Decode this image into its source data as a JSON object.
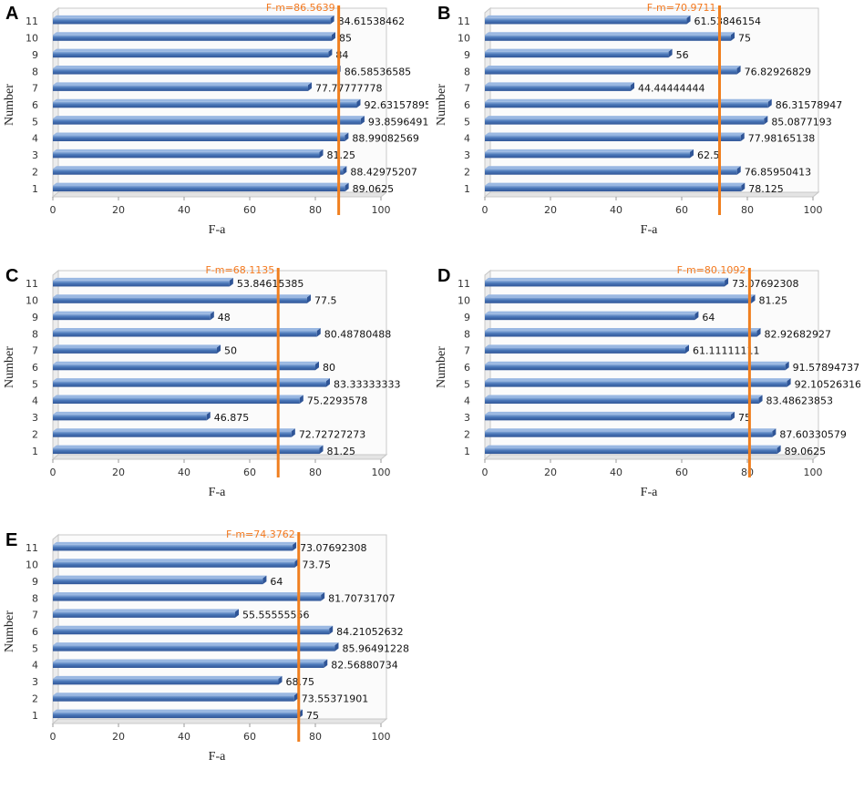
{
  "colors": {
    "bar": "#4a77b8",
    "bar_dark": "#2f5597",
    "fm_line": "#f07f1f",
    "frame": "#c8c8c8"
  },
  "chart_data": [
    {
      "panel": "A",
      "type": "bar",
      "orientation": "horizontal",
      "categories": [
        "1",
        "2",
        "3",
        "4",
        "5",
        "6",
        "7",
        "8",
        "9",
        "10",
        "11"
      ],
      "values": [
        89.0625,
        88.42975207,
        81.25,
        88.99082569,
        93.85964912,
        92.63157895,
        77.77777778,
        86.58536585,
        84,
        85,
        84.61538462
      ],
      "value_labels": [
        "89.0625",
        "88.42975207",
        "81.25",
        "88.99082569",
        "93.85964912",
        "92.63157895",
        "77.77777778",
        "86.58536585",
        "84",
        "85",
        "84.61538462"
      ],
      "fm_value": 86.5639,
      "fm_label": "F-m=86.5639",
      "xlabel": "F-a",
      "ylabel": "Number",
      "xlim": [
        0,
        100
      ],
      "xticks": [
        "0",
        "20",
        "40",
        "60",
        "80",
        "100"
      ]
    },
    {
      "panel": "B",
      "type": "bar",
      "orientation": "horizontal",
      "categories": [
        "1",
        "2",
        "3",
        "4",
        "5",
        "6",
        "7",
        "8",
        "9",
        "10",
        "11"
      ],
      "values": [
        78.125,
        76.85950413,
        62.5,
        77.98165138,
        85.0877193,
        86.31578947,
        44.44444444,
        76.82926829,
        56,
        75,
        61.53846154
      ],
      "value_labels": [
        "78.125",
        "76.85950413",
        "62.5",
        "77.98165138",
        "85.0877193",
        "86.31578947",
        "44.44444444",
        "76.82926829",
        "56",
        "75",
        "61.53846154"
      ],
      "fm_value": 70.9711,
      "fm_label": "F-m=70.9711",
      "xlabel": "F-a",
      "ylabel": "Number",
      "xlim": [
        0,
        100
      ],
      "xticks": [
        "0",
        "20",
        "40",
        "60",
        "80",
        "100"
      ]
    },
    {
      "panel": "C",
      "type": "bar",
      "orientation": "horizontal",
      "categories": [
        "1",
        "2",
        "3",
        "4",
        "5",
        "6",
        "7",
        "8",
        "9",
        "10",
        "11"
      ],
      "values": [
        81.25,
        72.72727273,
        46.875,
        75.2293578,
        83.33333333,
        80,
        50,
        80.48780488,
        48,
        77.5,
        53.84615385
      ],
      "value_labels": [
        "81.25",
        "72.72727273",
        "46.875",
        "75.2293578",
        "83.33333333",
        "80",
        "50",
        "80.48780488",
        "48",
        "77.5",
        "53.84615385"
      ],
      "fm_value": 68.1135,
      "fm_label": "F-m=68.1135",
      "xlabel": "F-a",
      "ylabel": "Number",
      "xlim": [
        0,
        100
      ],
      "xticks": [
        "0",
        "20",
        "40",
        "60",
        "80",
        "100"
      ]
    },
    {
      "panel": "D",
      "type": "bar",
      "orientation": "horizontal",
      "categories": [
        "1",
        "2",
        "3",
        "4",
        "5",
        "6",
        "7",
        "8",
        "9",
        "10",
        "11"
      ],
      "values": [
        89.0625,
        87.60330579,
        75,
        83.48623853,
        92.10526316,
        91.57894737,
        61.11111111,
        82.92682927,
        64,
        81.25,
        73.07692308
      ],
      "value_labels": [
        "89.0625",
        "87.60330579",
        "75",
        "83.48623853",
        "92.10526316",
        "91.57894737",
        "61.11111111",
        "82.92682927",
        "64",
        "81.25",
        "73.07692308"
      ],
      "fm_value": 80.1092,
      "fm_label": "F-m=80.1092",
      "xlabel": "F-a",
      "ylabel": "Number",
      "xlim": [
        0,
        100
      ],
      "xticks": [
        "0",
        "20",
        "40",
        "60",
        "80",
        "100"
      ]
    },
    {
      "panel": "E",
      "type": "bar",
      "orientation": "horizontal",
      "categories": [
        "1",
        "2",
        "3",
        "4",
        "5",
        "6",
        "7",
        "8",
        "9",
        "10",
        "11"
      ],
      "values": [
        75,
        73.55371901,
        68.75,
        82.56880734,
        85.96491228,
        84.21052632,
        55.55555556,
        81.70731707,
        64,
        73.75,
        73.07692308
      ],
      "value_labels": [
        "75",
        "73.55371901",
        "68.75",
        "82.56880734",
        "85.96491228",
        "84.21052632",
        "55.55555556",
        "81.70731707",
        "64",
        "73.75",
        "73.07692308"
      ],
      "fm_value": 74.3762,
      "fm_label": "F-m=74.3762",
      "xlabel": "F-a",
      "ylabel": "Number",
      "xlim": [
        0,
        100
      ],
      "xticks": [
        "0",
        "20",
        "40",
        "60",
        "80",
        "100"
      ]
    }
  ]
}
